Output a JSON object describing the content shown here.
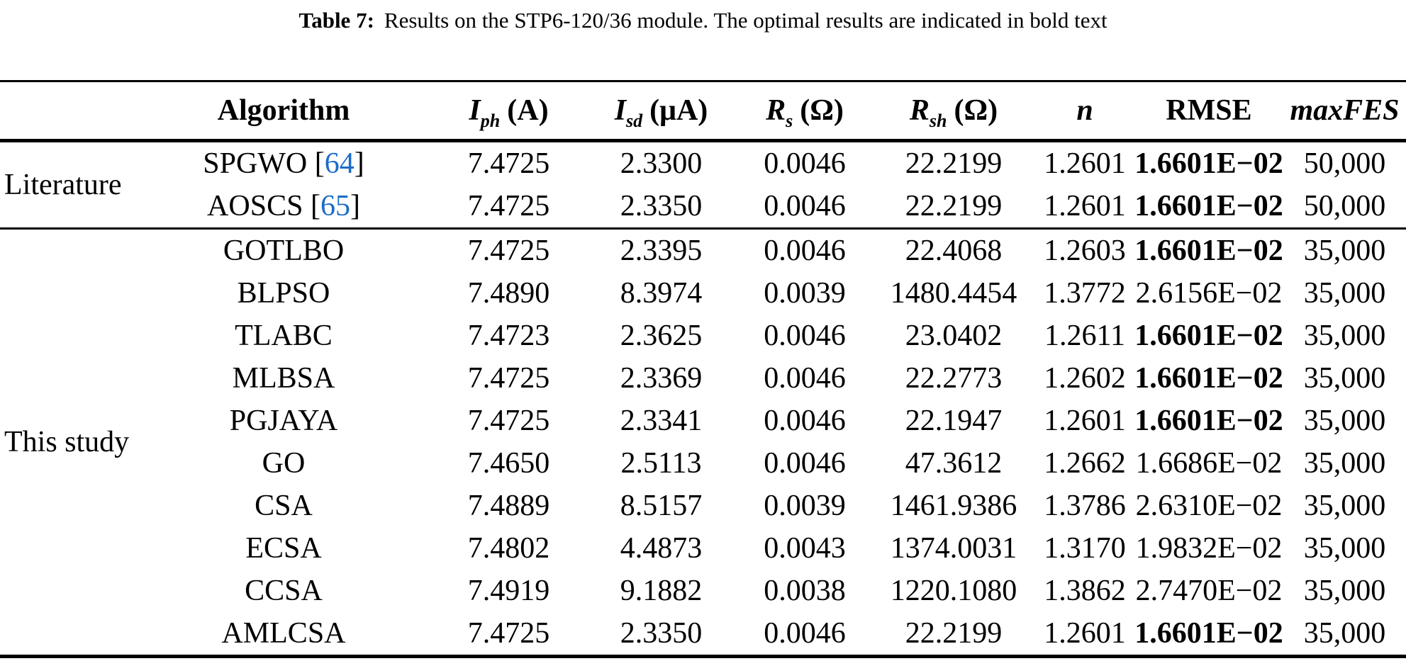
{
  "caption": {
    "label": "Table 7:",
    "text": "Results on the STP6-120/36 module. The optimal results are indicated in bold text"
  },
  "colors": {
    "citation_blue": "#1c6cc5",
    "rule_black": "#000000"
  },
  "table": {
    "columns": [
      {
        "key": "algorithm",
        "label": "Algorithm"
      },
      {
        "key": "iph",
        "base": "I",
        "sub": "ph",
        "unit": "(A)"
      },
      {
        "key": "isd",
        "base": "I",
        "sub": "sd",
        "unit": "(μA)"
      },
      {
        "key": "rs",
        "base": "R",
        "sub": "s",
        "unit": "(Ω)"
      },
      {
        "key": "rsh",
        "base": "R",
        "sub": "sh",
        "unit": "(Ω)"
      },
      {
        "key": "n",
        "base": "n"
      },
      {
        "key": "rmse",
        "label": "RMSE"
      },
      {
        "key": "maxfes",
        "label": "maxFES"
      }
    ],
    "groups": [
      {
        "label": "Literature",
        "rows": [
          {
            "algorithm": "SPGWO",
            "ref": "64",
            "iph": "7.4725",
            "isd": "2.3300",
            "rs": "0.0046",
            "rsh": "22.2199",
            "n": "1.2601",
            "rmse": "1.6601E−02",
            "rmse_bold": true,
            "maxfes": "50,000"
          },
          {
            "algorithm": "AOSCS",
            "ref": "65",
            "iph": "7.4725",
            "isd": "2.3350",
            "rs": "0.0046",
            "rsh": "22.2199",
            "n": "1.2601",
            "rmse": "1.6601E−02",
            "rmse_bold": true,
            "maxfes": "50,000"
          }
        ]
      },
      {
        "label": "This study",
        "rows": [
          {
            "algorithm": "GOTLBO",
            "iph": "7.4725",
            "isd": "2.3395",
            "rs": "0.0046",
            "rsh": "22.4068",
            "n": "1.2603",
            "rmse": "1.6601E−02",
            "rmse_bold": true,
            "maxfes": "35,000"
          },
          {
            "algorithm": "BLPSO",
            "iph": "7.4890",
            "isd": "8.3974",
            "rs": "0.0039",
            "rsh": "1480.4454",
            "n": "1.3772",
            "rmse": "2.6156E−02",
            "rmse_bold": false,
            "maxfes": "35,000"
          },
          {
            "algorithm": "TLABC",
            "iph": "7.4723",
            "isd": "2.3625",
            "rs": "0.0046",
            "rsh": "23.0402",
            "n": "1.2611",
            "rmse": "1.6601E−02",
            "rmse_bold": true,
            "maxfes": "35,000"
          },
          {
            "algorithm": "MLBSA",
            "iph": "7.4725",
            "isd": "2.3369",
            "rs": "0.0046",
            "rsh": "22.2773",
            "n": "1.2602",
            "rmse": "1.6601E−02",
            "rmse_bold": true,
            "maxfes": "35,000"
          },
          {
            "algorithm": "PGJAYA",
            "iph": "7.4725",
            "isd": "2.3341",
            "rs": "0.0046",
            "rsh": "22.1947",
            "n": "1.2601",
            "rmse": "1.6601E−02",
            "rmse_bold": true,
            "maxfes": "35,000"
          },
          {
            "algorithm": "GO",
            "iph": "7.4650",
            "isd": "2.5113",
            "rs": "0.0046",
            "rsh": "47.3612",
            "n": "1.2662",
            "rmse": "1.6686E−02",
            "rmse_bold": false,
            "maxfes": "35,000"
          },
          {
            "algorithm": "CSA",
            "iph": "7.4889",
            "isd": "8.5157",
            "rs": "0.0039",
            "rsh": "1461.9386",
            "n": "1.3786",
            "rmse": "2.6310E−02",
            "rmse_bold": false,
            "maxfes": "35,000"
          },
          {
            "algorithm": "ECSA",
            "iph": "7.4802",
            "isd": "4.4873",
            "rs": "0.0043",
            "rsh": "1374.0031",
            "n": "1.3170",
            "rmse": "1.9832E−02",
            "rmse_bold": false,
            "maxfes": "35,000"
          },
          {
            "algorithm": "CCSA",
            "iph": "7.4919",
            "isd": "9.1882",
            "rs": "0.0038",
            "rsh": "1220.1080",
            "n": "1.3862",
            "rmse": "2.7470E−02",
            "rmse_bold": false,
            "maxfes": "35,000"
          },
          {
            "algorithm": "AMLCSA",
            "iph": "7.4725",
            "isd": "2.3350",
            "rs": "0.0046",
            "rsh": "22.2199",
            "n": "1.2601",
            "rmse": "1.6601E−02",
            "rmse_bold": true,
            "maxfes": "35,000"
          }
        ]
      }
    ]
  }
}
